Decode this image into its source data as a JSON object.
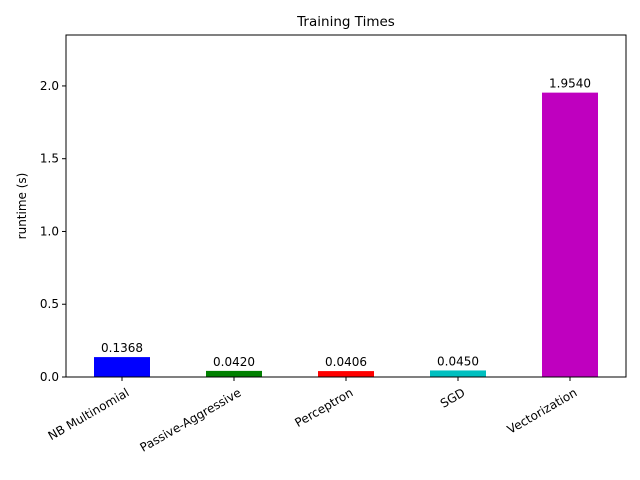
{
  "chart_data": {
    "type": "bar",
    "title": "Training Times",
    "y_label": "runtime (s)",
    "categories": [
      "NB Multinomial",
      "Passive-Aggressive",
      "Perceptron",
      "SGD",
      "Vectorization"
    ],
    "values": [
      0.1368,
      0.042,
      0.0406,
      0.045,
      1.954
    ],
    "value_labels": [
      "0.1368",
      "0.0420",
      "0.0406",
      "0.0450",
      "1.9540"
    ],
    "colors": [
      "#0000ff",
      "#008000",
      "#ff0000",
      "#00bfbf",
      "#bf00bf"
    ],
    "ylim": [
      0,
      2.35
    ],
    "yticks": [
      {
        "value": 0,
        "label": "0.0"
      },
      0.5,
      {
        "value": 1,
        "label": "1.0"
      },
      1.5,
      {
        "value": 2,
        "label": "2.0"
      }
    ],
    "grid": false
  }
}
